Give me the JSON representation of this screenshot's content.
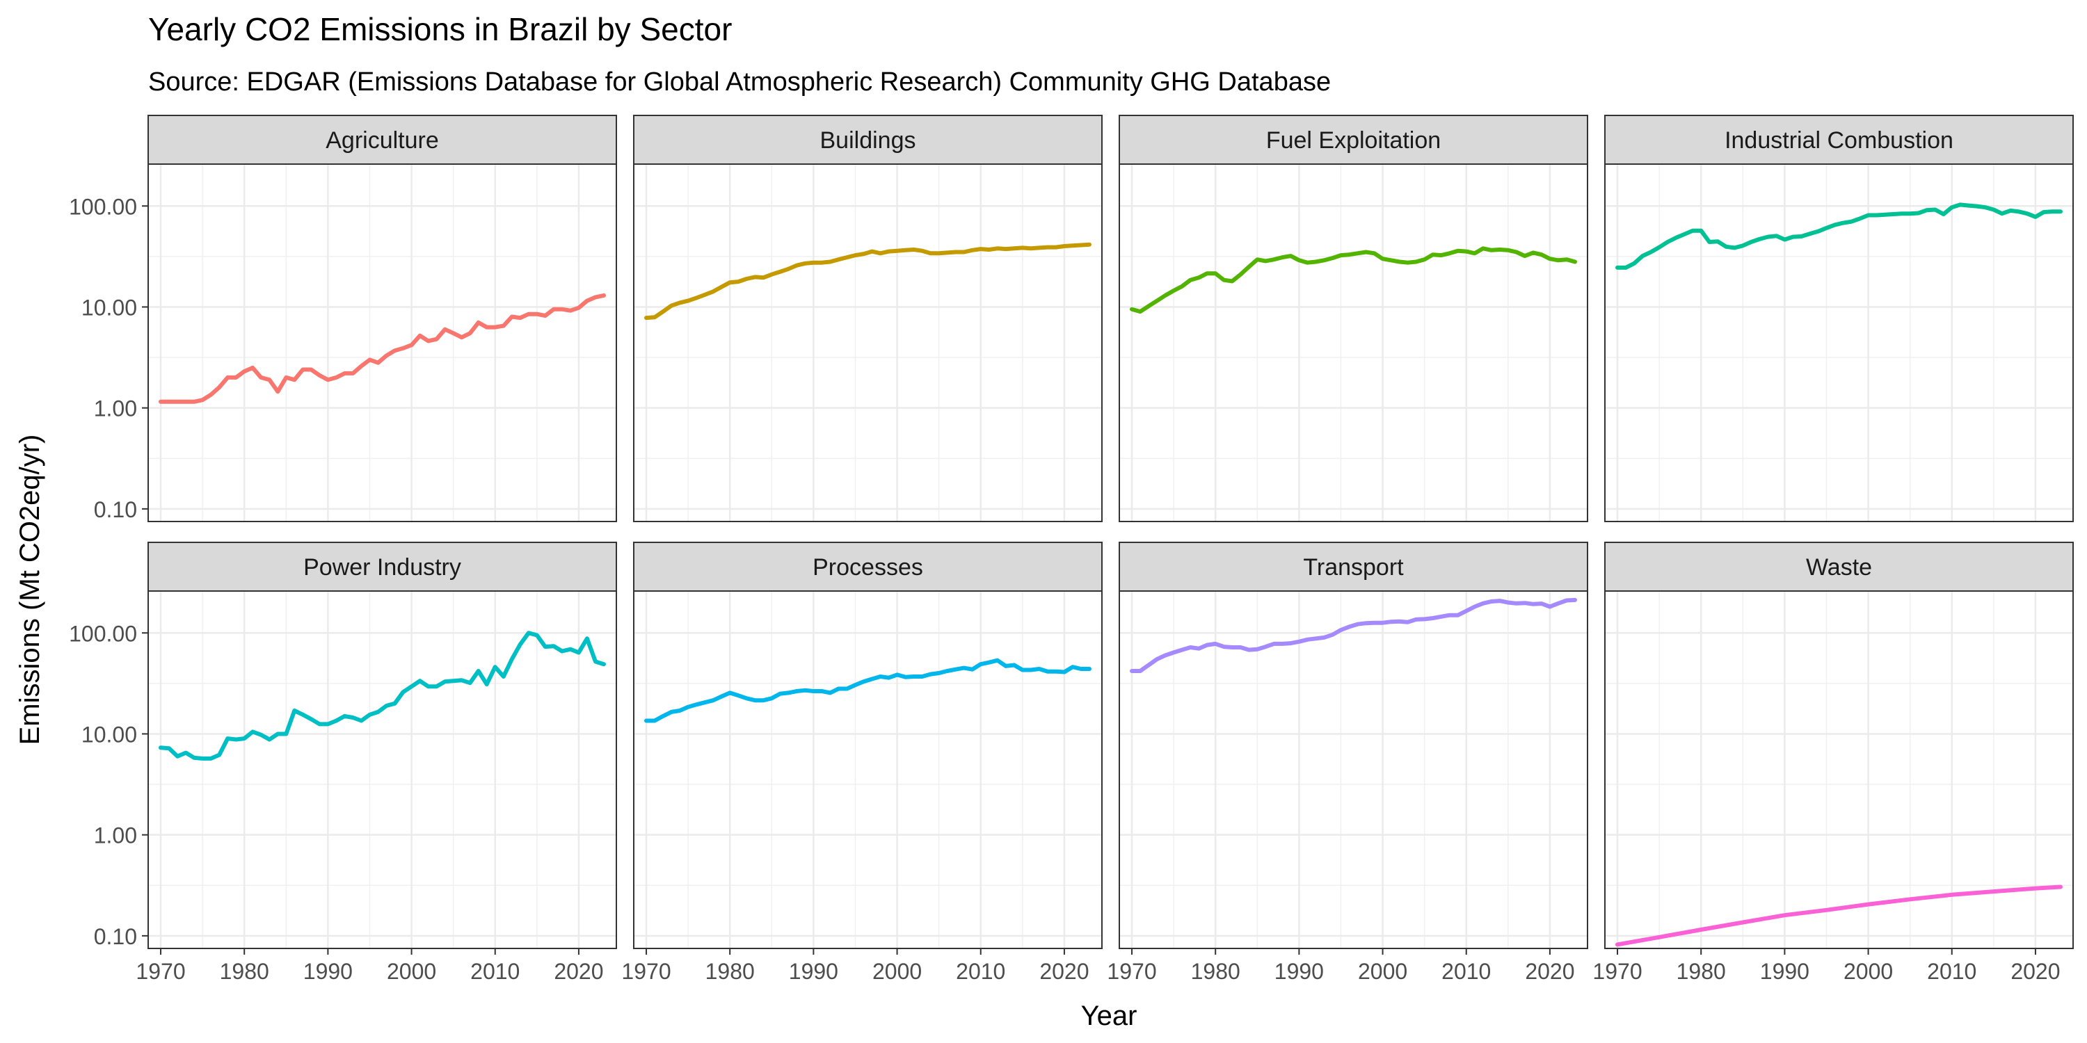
{
  "chart_data": {
    "type": "line",
    "title": "Yearly CO2 Emissions in Brazil by Sector",
    "subtitle": "Source: EDGAR (Emissions Database for Global Atmospheric Research) Community GHG Database",
    "xlabel": "Year",
    "ylabel": "Emissions (Mt CO2eq/yr)",
    "y_scale": "log10",
    "ylim": [
      0.075,
      260
    ],
    "xlim": [
      1968.5,
      2024.5
    ],
    "x_ticks": [
      1970,
      1980,
      1990,
      2000,
      2010,
      2020
    ],
    "y_ticks": [
      0.1,
      1,
      10,
      100
    ],
    "y_tick_labels": [
      "0.10",
      "1.00",
      "10.00",
      "100.00"
    ],
    "grid": true,
    "legend": "none",
    "facets": [
      {
        "name": "Agriculture",
        "color": "#F8766D",
        "x": [
          1970,
          1972,
          1974,
          1975,
          1976,
          1977,
          1978,
          1979,
          1980,
          1981,
          1982,
          1983,
          1984,
          1985,
          1986,
          1987,
          1988,
          1989,
          1990,
          1991,
          1992,
          1993,
          1994,
          1995,
          1996,
          1997,
          1998,
          1999,
          2000,
          2001,
          2002,
          2003,
          2004,
          2005,
          2006,
          2007,
          2008,
          2009,
          2010,
          2011,
          2012,
          2013,
          2014,
          2015,
          2016,
          2017,
          2018,
          2019,
          2020,
          2021,
          2022,
          2023
        ],
        "values": [
          1.15,
          1.15,
          1.15,
          1.2,
          1.35,
          1.6,
          2.0,
          2.0,
          2.3,
          2.5,
          2.0,
          1.9,
          1.45,
          2.0,
          1.9,
          2.4,
          2.4,
          2.1,
          1.9,
          2.0,
          2.2,
          2.2,
          2.6,
          3.0,
          2.8,
          3.3,
          3.7,
          3.9,
          4.2,
          5.2,
          4.6,
          4.8,
          6.0,
          5.5,
          5.0,
          5.5,
          7.0,
          6.3,
          6.3,
          6.5,
          8.0,
          7.8,
          8.5,
          8.5,
          8.2,
          9.5,
          9.5,
          9.2,
          9.8,
          11.5,
          12.5,
          13.0
        ]
      },
      {
        "name": "Buildings",
        "color": "#C49A00",
        "x": [
          1970,
          1971,
          1972,
          1973,
          1974,
          1975,
          1976,
          1977,
          1978,
          1979,
          1980,
          1981,
          1982,
          1983,
          1984,
          1985,
          1986,
          1987,
          1988,
          1989,
          1990,
          1991,
          1992,
          1993,
          1994,
          1995,
          1996,
          1997,
          1998,
          1999,
          2000,
          2001,
          2002,
          2003,
          2004,
          2005,
          2006,
          2007,
          2008,
          2009,
          2010,
          2011,
          2012,
          2013,
          2014,
          2015,
          2016,
          2017,
          2018,
          2019,
          2020,
          2021,
          2022,
          2023
        ],
        "values": [
          7.8,
          7.9,
          9.0,
          10.3,
          11.0,
          11.5,
          12.3,
          13.2,
          14.2,
          15.8,
          17.5,
          17.8,
          19.0,
          19.8,
          19.5,
          21.0,
          22.3,
          23.8,
          25.8,
          27.0,
          27.5,
          27.5,
          28.0,
          29.5,
          31.0,
          32.5,
          33.5,
          35.5,
          34.0,
          35.5,
          36.0,
          36.5,
          37.0,
          36.0,
          34.0,
          34.0,
          34.5,
          35.0,
          35.0,
          36.5,
          37.5,
          37.0,
          38.0,
          37.5,
          38.0,
          38.5,
          38.0,
          38.5,
          39.0,
          39.0,
          40.0,
          40.5,
          41.0,
          41.5
        ]
      },
      {
        "name": "Fuel Exploitation",
        "color": "#53B400",
        "x": [
          1970,
          1971,
          1972,
          1973,
          1974,
          1975,
          1976,
          1977,
          1978,
          1979,
          1980,
          1981,
          1982,
          1983,
          1984,
          1985,
          1986,
          1987,
          1988,
          1989,
          1990,
          1991,
          1992,
          1993,
          1994,
          1995,
          1996,
          1997,
          1998,
          1999,
          2000,
          2001,
          2002,
          2003,
          2004,
          2005,
          2006,
          2007,
          2008,
          2009,
          2010,
          2011,
          2012,
          2013,
          2014,
          2015,
          2016,
          2017,
          2018,
          2019,
          2020,
          2021,
          2022,
          2023
        ],
        "values": [
          9.5,
          9.0,
          10.2,
          11.5,
          13.0,
          14.5,
          16.0,
          18.5,
          19.5,
          21.5,
          21.5,
          18.5,
          18.0,
          21.0,
          25.0,
          29.5,
          28.5,
          29.5,
          31.0,
          32.0,
          29.0,
          27.5,
          28.0,
          29.0,
          30.5,
          32.5,
          33.0,
          34.0,
          35.0,
          34.0,
          30.0,
          29.0,
          28.0,
          27.5,
          28.0,
          29.5,
          33.0,
          32.5,
          34.0,
          36.0,
          35.5,
          34.0,
          38.0,
          36.5,
          37.0,
          36.5,
          35.0,
          32.0,
          34.5,
          33.0,
          30.0,
          29.0,
          29.5,
          28.0
        ]
      },
      {
        "name": "Industrial Combustion",
        "color": "#00C094",
        "x": [
          1970,
          1971,
          1972,
          1973,
          1974,
          1975,
          1976,
          1977,
          1978,
          1979,
          1980,
          1981,
          1982,
          1983,
          1984,
          1985,
          1986,
          1987,
          1988,
          1989,
          1990,
          1991,
          1992,
          1993,
          1994,
          1995,
          1996,
          1997,
          1998,
          1999,
          2000,
          2001,
          2002,
          2003,
          2004,
          2005,
          2006,
          2007,
          2008,
          2009,
          2010,
          2011,
          2012,
          2013,
          2014,
          2015,
          2016,
          2017,
          2018,
          2019,
          2020,
          2021,
          2022,
          2023
        ],
        "values": [
          24.5,
          24.5,
          27.0,
          32.0,
          35.0,
          39.0,
          44.0,
          48.5,
          52.5,
          57.0,
          57.0,
          44.0,
          44.5,
          39.5,
          38.5,
          40.5,
          44.0,
          47.0,
          49.5,
          50.5,
          46.5,
          49.5,
          50.0,
          53.0,
          56.0,
          60.5,
          65.0,
          68.0,
          70.0,
          75.0,
          81.0,
          81.0,
          82.0,
          83.0,
          84.0,
          84.0,
          85.0,
          91.0,
          92.0,
          83.0,
          97.0,
          103.0,
          101.0,
          99.5,
          97.0,
          92.0,
          84.0,
          90.0,
          88.0,
          84.0,
          78.0,
          87.0,
          88.0,
          88.0
        ]
      },
      {
        "name": "Power Industry",
        "color": "#00BFC4",
        "x": [
          1970,
          1971,
          1972,
          1973,
          1974,
          1975,
          1976,
          1977,
          1978,
          1979,
          1980,
          1981,
          1982,
          1983,
          1984,
          1985,
          1986,
          1987,
          1988,
          1989,
          1990,
          1991,
          1992,
          1993,
          1994,
          1995,
          1996,
          1997,
          1998,
          1999,
          2000,
          2001,
          2002,
          2003,
          2004,
          2005,
          2006,
          2007,
          2008,
          2009,
          2010,
          2011,
          2012,
          2013,
          2014,
          2015,
          2016,
          2017,
          2018,
          2019,
          2020,
          2021,
          2022,
          2023
        ],
        "values": [
          7.3,
          7.2,
          6.0,
          6.5,
          5.8,
          5.7,
          5.7,
          6.2,
          9.0,
          8.8,
          9.0,
          10.5,
          9.8,
          8.8,
          10.0,
          10.0,
          17.0,
          15.5,
          14.0,
          12.5,
          12.5,
          13.5,
          15.0,
          14.5,
          13.5,
          15.5,
          16.5,
          19.0,
          20.0,
          26.0,
          29.5,
          33.5,
          29.5,
          29.5,
          33.0,
          33.5,
          34.0,
          32.0,
          42.0,
          31.0,
          46.0,
          37.0,
          55.0,
          77.0,
          100.0,
          95.0,
          73.0,
          74.0,
          66.0,
          69.0,
          64.0,
          88.0,
          52.0,
          49.0
        ]
      },
      {
        "name": "Processes",
        "color": "#00B6EB",
        "x": [
          1970,
          1971,
          1972,
          1973,
          1974,
          1975,
          1976,
          1977,
          1978,
          1979,
          1980,
          1981,
          1982,
          1983,
          1984,
          1985,
          1986,
          1987,
          1988,
          1989,
          1990,
          1991,
          1992,
          1993,
          1994,
          1995,
          1996,
          1997,
          1998,
          1999,
          2000,
          2001,
          2002,
          2003,
          2004,
          2005,
          2006,
          2007,
          2008,
          2009,
          2010,
          2011,
          2012,
          2013,
          2014,
          2015,
          2016,
          2017,
          2018,
          2019,
          2020,
          2021,
          2022,
          2023
        ],
        "values": [
          13.5,
          13.5,
          15.0,
          16.5,
          17.0,
          18.5,
          19.5,
          20.5,
          21.5,
          23.5,
          25.5,
          24.0,
          22.5,
          21.5,
          21.5,
          22.5,
          25.0,
          25.5,
          26.5,
          27.0,
          26.5,
          26.5,
          25.5,
          28.0,
          28.0,
          30.5,
          33.0,
          35.0,
          37.0,
          36.0,
          38.5,
          36.5,
          37.0,
          37.0,
          39.0,
          40.0,
          42.0,
          43.5,
          45.0,
          43.5,
          49.0,
          51.0,
          53.5,
          47.0,
          48.0,
          43.0,
          43.0,
          44.0,
          41.5,
          41.5,
          41.0,
          46.0,
          44.0,
          44.0
        ]
      },
      {
        "name": "Transport",
        "color": "#A58AFF",
        "x": [
          1970,
          1971,
          1972,
          1973,
          1974,
          1975,
          1976,
          1977,
          1978,
          1979,
          1980,
          1981,
          1982,
          1983,
          1984,
          1985,
          1986,
          1987,
          1988,
          1989,
          1990,
          1991,
          1992,
          1993,
          1994,
          1995,
          1996,
          1997,
          1998,
          1999,
          2000,
          2001,
          2002,
          2003,
          2004,
          2005,
          2006,
          2007,
          2008,
          2009,
          2010,
          2011,
          2012,
          2013,
          2014,
          2015,
          2016,
          2017,
          2018,
          2019,
          2020,
          2021,
          2022,
          2023
        ],
        "values": [
          42.0,
          42.0,
          48.0,
          55.0,
          60.0,
          64.0,
          68.0,
          72.0,
          70.0,
          76.0,
          78.0,
          73.0,
          72.0,
          72.0,
          68.0,
          69.0,
          73.0,
          78.0,
          78.0,
          79.0,
          82.0,
          86.0,
          88.0,
          90.0,
          96.0,
          107.0,
          115.0,
          122.0,
          125.0,
          126.0,
          126.0,
          129.0,
          130.0,
          128.0,
          136.0,
          137.0,
          140.0,
          145.0,
          150.0,
          150.0,
          165.0,
          182.0,
          196.0,
          205.0,
          208.0,
          200.0,
          196.0,
          198.0,
          193.0,
          195.0,
          182.0,
          196.0,
          210.0,
          212.0
        ]
      },
      {
        "name": "Waste",
        "color": "#FB61D7",
        "x": [
          1970,
          1975,
          1980,
          1985,
          1990,
          1995,
          2000,
          2005,
          2010,
          2015,
          2020,
          2023
        ],
        "values": [
          0.082,
          0.097,
          0.115,
          0.136,
          0.16,
          0.18,
          0.205,
          0.23,
          0.255,
          0.275,
          0.295,
          0.305
        ]
      }
    ]
  }
}
